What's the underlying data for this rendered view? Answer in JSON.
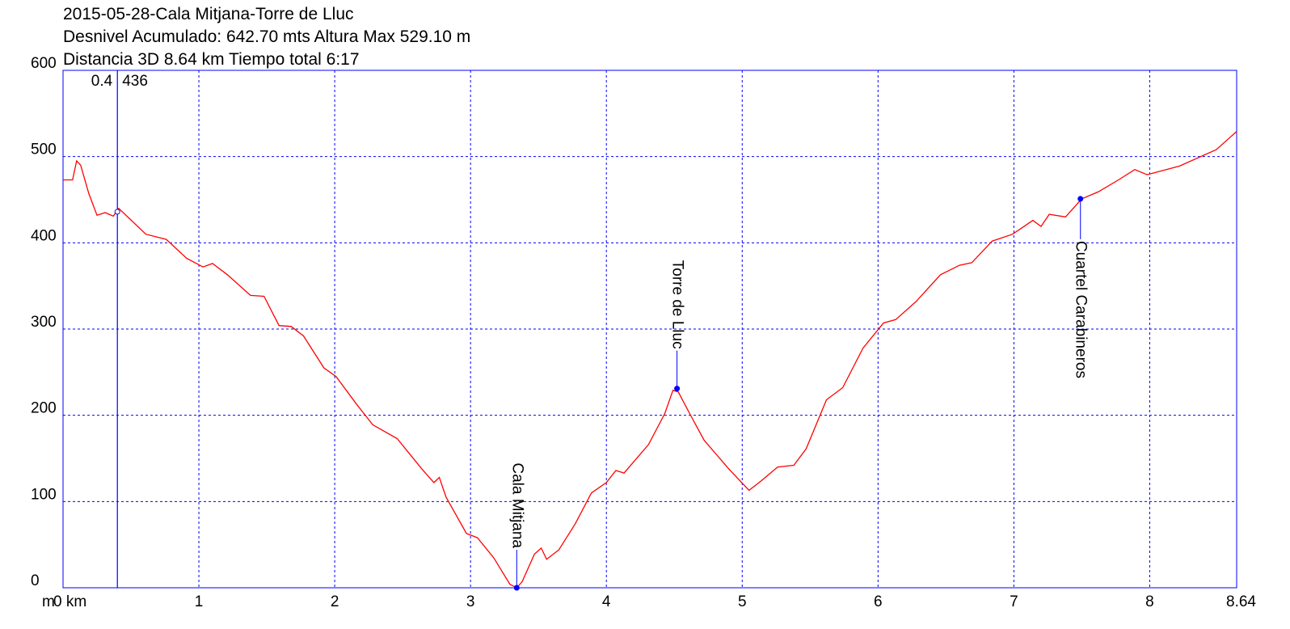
{
  "chart_data": {
    "type": "line",
    "title": "2015-05-28-Cala Mitjana-Torre de Lluc",
    "subtitle": [
      "Desnivel Acumulado: 642.70 mts  Altura Max 529.10 m",
      "Distancia 3D 8.64 km  Tiempo total 6:17"
    ],
    "y_unit": "m",
    "color": "#ff0000",
    "axis_color": "#0000ff",
    "grid": true,
    "xlim": [
      0,
      8.64
    ],
    "ylim": [
      0,
      600
    ],
    "xticks": [
      {
        "value": 0,
        "label": "0 km"
      },
      1,
      2,
      3,
      4,
      5,
      6,
      7,
      8,
      8.64
    ],
    "yticks": [
      0,
      100,
      200,
      300,
      400,
      500,
      600
    ],
    "x": [
      0,
      0.07,
      0.1,
      0.13,
      0.19,
      0.25,
      0.31,
      0.37,
      0.41,
      0.49,
      0.61,
      0.76,
      0.91,
      1.03,
      1.1,
      1.21,
      1.38,
      1.48,
      1.59,
      1.68,
      1.77,
      1.92,
      2.01,
      2.16,
      2.28,
      2.46,
      2.64,
      2.73,
      2.77,
      2.82,
      2.97,
      3.05,
      3.17,
      3.29,
      3.34,
      3.38,
      3.47,
      3.52,
      3.56,
      3.65,
      3.77,
      3.89,
      4.0,
      4.07,
      4.13,
      4.31,
      4.43,
      4.49,
      4.53,
      4.61,
      4.72,
      4.9,
      5.05,
      5.14,
      5.26,
      5.38,
      5.47,
      5.62,
      5.74,
      5.89,
      6.04,
      6.13,
      6.28,
      6.46,
      6.6,
      6.69,
      6.84,
      6.99,
      7.14,
      7.2,
      7.26,
      7.38,
      7.5,
      7.62,
      7.77,
      7.89,
      7.98,
      8.22,
      8.49,
      8.64
    ],
    "values": [
      473,
      473,
      495,
      490,
      457,
      432,
      435,
      431,
      440,
      428,
      410,
      404,
      382,
      372,
      376,
      363,
      339,
      338,
      304,
      303,
      292,
      255,
      245,
      213,
      189,
      173,
      138,
      122,
      128,
      105,
      63,
      58,
      35,
      4,
      0,
      7,
      39,
      46,
      33,
      44,
      74,
      110,
      122,
      136,
      133,
      166,
      202,
      229,
      227,
      203,
      171,
      138,
      113,
      124,
      140,
      142,
      161,
      218,
      232,
      278,
      307,
      311,
      332,
      363,
      374,
      377,
      402,
      410,
      426,
      419,
      433,
      430,
      451,
      459,
      473,
      485,
      479,
      489,
      508,
      529.1
    ],
    "cursor": {
      "x": 0.4,
      "y": 436
    },
    "markers": [
      {
        "label": "Cala Mitjana",
        "x": 3.34,
        "y": 0,
        "placement": "above"
      },
      {
        "label": "Torre de Lluc",
        "x": 4.52,
        "y": 231,
        "placement": "above"
      },
      {
        "label": "Cuartel Carabineros",
        "x": 7.49,
        "y": 451,
        "placement": "below"
      }
    ]
  }
}
